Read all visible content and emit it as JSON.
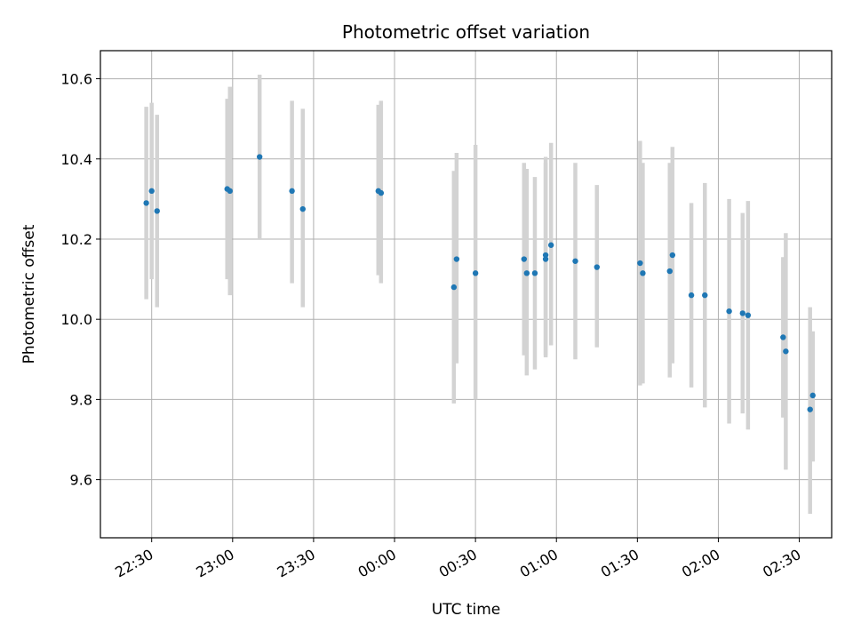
{
  "chart_data": {
    "type": "scatter",
    "title": "Photometric offset variation",
    "xlabel": "UTC time",
    "ylabel": "Photometric offset",
    "grid": true,
    "legend": "none",
    "colors": {
      "point": "#1f77b4",
      "errorbar": "#d3d3d3",
      "grid": "#b0b0b0"
    },
    "xlim": [
      "22:11",
      "02:42"
    ],
    "ylim": [
      9.455,
      10.67
    ],
    "x_ticks": [
      "22:30",
      "23:00",
      "23:30",
      "00:00",
      "00:30",
      "01:00",
      "01:30",
      "02:00",
      "02:30"
    ],
    "y_ticks": [
      "9.6",
      "9.8",
      "10.0",
      "10.2",
      "10.4",
      "10.6"
    ],
    "points": [
      {
        "t": "22:28",
        "y": 10.29,
        "lo": 10.05,
        "hi": 10.53
      },
      {
        "t": "22:30",
        "y": 10.32,
        "lo": 10.1,
        "hi": 10.54
      },
      {
        "t": "22:32",
        "y": 10.27,
        "lo": 10.03,
        "hi": 10.51
      },
      {
        "t": "22:58",
        "y": 10.325,
        "lo": 10.1,
        "hi": 10.55
      },
      {
        "t": "22:59",
        "y": 10.32,
        "lo": 10.06,
        "hi": 10.58
      },
      {
        "t": "23:10",
        "y": 10.405,
        "lo": 10.2,
        "hi": 10.61
      },
      {
        "t": "23:22",
        "y": 10.32,
        "lo": 10.09,
        "hi": 10.545
      },
      {
        "t": "23:26",
        "y": 10.275,
        "lo": 10.03,
        "hi": 10.525
      },
      {
        "t": "23:54",
        "y": 10.32,
        "lo": 10.11,
        "hi": 10.535
      },
      {
        "t": "23:55",
        "y": 10.315,
        "lo": 10.09,
        "hi": 10.545
      },
      {
        "t": "00:22",
        "y": 10.08,
        "lo": 9.79,
        "hi": 10.37
      },
      {
        "t": "00:23",
        "y": 10.15,
        "lo": 9.89,
        "hi": 10.415
      },
      {
        "t": "00:30",
        "y": 10.115,
        "lo": 9.8,
        "hi": 10.435
      },
      {
        "t": "00:48",
        "y": 10.15,
        "lo": 9.91,
        "hi": 10.39
      },
      {
        "t": "00:49",
        "y": 10.115,
        "lo": 9.86,
        "hi": 10.375
      },
      {
        "t": "00:52",
        "y": 10.115,
        "lo": 9.875,
        "hi": 10.355
      },
      {
        "t": "00:56",
        "y": 10.16,
        "lo": 9.905,
        "hi": 10.405
      },
      {
        "t": "00:56",
        "y": 10.15,
        "lo": 9.91,
        "hi": 10.39
      },
      {
        "t": "00:58",
        "y": 10.185,
        "lo": 9.935,
        "hi": 10.44
      },
      {
        "t": "01:07",
        "y": 10.145,
        "lo": 9.9,
        "hi": 10.39
      },
      {
        "t": "01:15",
        "y": 10.13,
        "lo": 9.93,
        "hi": 10.335
      },
      {
        "t": "01:31",
        "y": 10.14,
        "lo": 9.835,
        "hi": 10.445
      },
      {
        "t": "01:32",
        "y": 10.115,
        "lo": 9.84,
        "hi": 10.39
      },
      {
        "t": "01:42",
        "y": 10.12,
        "lo": 9.855,
        "hi": 10.39
      },
      {
        "t": "01:43",
        "y": 10.16,
        "lo": 9.89,
        "hi": 10.43
      },
      {
        "t": "01:50",
        "y": 10.06,
        "lo": 9.83,
        "hi": 10.29
      },
      {
        "t": "01:55",
        "y": 10.06,
        "lo": 9.78,
        "hi": 10.34
      },
      {
        "t": "02:04",
        "y": 10.02,
        "lo": 9.74,
        "hi": 10.3
      },
      {
        "t": "02:09",
        "y": 10.015,
        "lo": 9.765,
        "hi": 10.265
      },
      {
        "t": "02:11",
        "y": 10.01,
        "lo": 9.725,
        "hi": 10.295
      },
      {
        "t": "02:24",
        "y": 9.955,
        "lo": 9.755,
        "hi": 10.155
      },
      {
        "t": "02:25",
        "y": 9.92,
        "lo": 9.625,
        "hi": 10.215
      },
      {
        "t": "02:34",
        "y": 9.775,
        "lo": 9.515,
        "hi": 10.03
      },
      {
        "t": "02:35",
        "y": 9.81,
        "lo": 9.645,
        "hi": 9.97
      }
    ]
  }
}
